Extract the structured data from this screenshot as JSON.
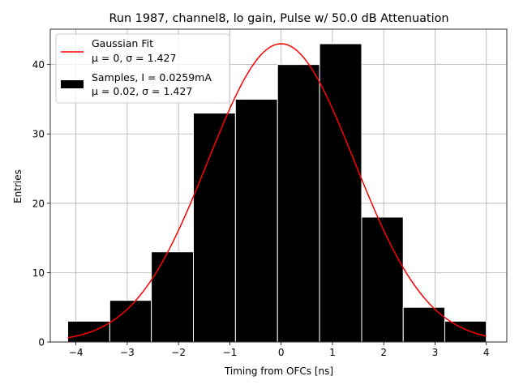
{
  "chart_data": {
    "type": "bar",
    "title": "Run 1987, channel8, lo gain, Pulse w/ 50.0 dB Attenuation",
    "xlabel": "Timing from OFCs [ns]",
    "ylabel": "Entries",
    "xlim": [
      -4.5,
      4.4
    ],
    "ylim": [
      0,
      45.1
    ],
    "grid": true,
    "legend_position": "upper-left",
    "x_ticks": [
      -4,
      -3,
      -2,
      -1,
      0,
      1,
      2,
      3,
      4
    ],
    "x_tick_labels": [
      "−4",
      "−3",
      "−2",
      "−1",
      "0",
      "1",
      "2",
      "3",
      "4"
    ],
    "y_ticks": [
      0,
      10,
      20,
      30,
      40
    ],
    "y_tick_labels": [
      "0",
      "10",
      "20",
      "30",
      "40"
    ],
    "histogram": {
      "name": "Samples",
      "color": "#000000",
      "edge_color": "#ffffff",
      "bin_edges": [
        -4.16,
        -3.34,
        -2.53,
        -1.71,
        -0.89,
        -0.07,
        0.75,
        1.57,
        2.38,
        3.19,
        4.0
      ],
      "values": [
        3,
        6,
        13,
        33,
        35,
        40,
        43,
        18,
        5,
        3
      ]
    },
    "fit": {
      "name": "Gaussian Fit",
      "color": "#ff0000",
      "mu": 0,
      "sigma": 1.427,
      "amplitude": 43,
      "x_range": [
        -4.16,
        4.0
      ]
    },
    "legend": [
      {
        "kind": "line",
        "color": "#ff0000",
        "line1": "Gaussian Fit",
        "line2": "μ = 0, σ = 1.427"
      },
      {
        "kind": "patch",
        "color": "#000000",
        "line1": "Samples, I = 0.0259mA",
        "line2": "μ = 0.02, σ = 1.427"
      }
    ]
  }
}
